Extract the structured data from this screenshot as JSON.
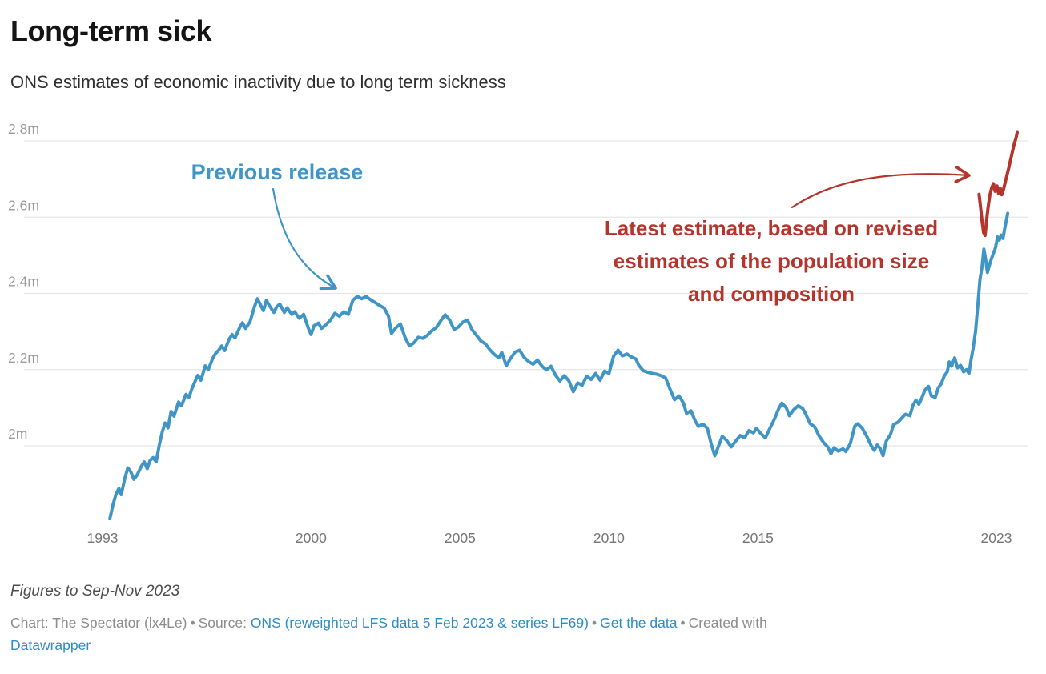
{
  "header": {
    "title": "Long-term sick",
    "subtitle": "ONS estimates of economic inactivity due to long term sickness"
  },
  "annotations": {
    "previous_release": {
      "text": "Previous release",
      "color": "#4095c7"
    },
    "latest_estimate": {
      "line1": "Latest estimate, based on revised",
      "line2": "estimates of the population size",
      "line3": "and composition",
      "color": "#b5342b"
    }
  },
  "footer": {
    "note": "Figures to Sep-Nov 2023",
    "attribution": {
      "chart_label": "Chart: The Spectator (lx4Le)",
      "separator": "•",
      "source_label": "Source:",
      "source_link": "ONS (reweighted LFS data 5 Feb 2023 & series LF69)",
      "get_data_link": "Get the data",
      "created_with": "Created with",
      "datawrapper_link": "Datawrapper"
    }
  },
  "colors": {
    "blue_line": "#4095c7",
    "red_line": "#b5342b",
    "grid": "#e6e6e6",
    "y_tick_text": "#9b9b9b",
    "x_tick_text": "#767676",
    "link": "#2d8dc6"
  },
  "chart_data": {
    "type": "line",
    "title": "Long-term sick",
    "subtitle": "ONS estimates of economic inactivity due to long term sickness",
    "xlabel": "",
    "ylabel": "",
    "unit": "millions of people",
    "xlim": [
      1993,
      2024
    ],
    "ylim": [
      1.78,
      2.84
    ],
    "grid": "horizontal",
    "legend_position": "annotations-on-chart",
    "y_ticks": [
      {
        "label": "2.8m",
        "value": 2.8
      },
      {
        "label": "2.6m",
        "value": 2.6
      },
      {
        "label": "2.4m",
        "value": 2.4
      },
      {
        "label": "2.2m",
        "value": 2.2
      },
      {
        "label": "2m",
        "value": 2.0
      }
    ],
    "x_ticks": [
      {
        "label": "1993",
        "value": 1993
      },
      {
        "label": "2000",
        "value": 2000
      },
      {
        "label": "2005",
        "value": 2005
      },
      {
        "label": "2010",
        "value": 2010
      },
      {
        "label": "2015",
        "value": 2015
      },
      {
        "label": "2023",
        "value": 2023
      }
    ],
    "series": [
      {
        "name": "Previous release",
        "color": "#4095c7",
        "points": [
          [
            1993.25,
            1.81
          ],
          [
            1993.35,
            1.845
          ],
          [
            1993.45,
            1.872
          ],
          [
            1993.55,
            1.888
          ],
          [
            1993.63,
            1.872
          ],
          [
            1993.75,
            1.915
          ],
          [
            1993.85,
            1.942
          ],
          [
            1993.95,
            1.932
          ],
          [
            1994.05,
            1.912
          ],
          [
            1994.15,
            1.922
          ],
          [
            1994.3,
            1.946
          ],
          [
            1994.4,
            1.958
          ],
          [
            1994.5,
            1.94
          ],
          [
            1994.6,
            1.962
          ],
          [
            1994.7,
            1.969
          ],
          [
            1994.8,
            1.958
          ],
          [
            1994.9,
            2.0
          ],
          [
            1995.0,
            2.035
          ],
          [
            1995.1,
            2.06
          ],
          [
            1995.2,
            2.047
          ],
          [
            1995.3,
            2.09
          ],
          [
            1995.4,
            2.078
          ],
          [
            1995.55,
            2.115
          ],
          [
            1995.65,
            2.105
          ],
          [
            1995.8,
            2.135
          ],
          [
            1995.9,
            2.127
          ],
          [
            1996.0,
            2.15
          ],
          [
            1996.1,
            2.168
          ],
          [
            1996.2,
            2.185
          ],
          [
            1996.3,
            2.172
          ],
          [
            1996.45,
            2.21
          ],
          [
            1996.55,
            2.2
          ],
          [
            1996.7,
            2.23
          ],
          [
            1996.8,
            2.243
          ],
          [
            1996.9,
            2.251
          ],
          [
            1997.0,
            2.262
          ],
          [
            1997.1,
            2.25
          ],
          [
            1997.25,
            2.28
          ],
          [
            1997.35,
            2.292
          ],
          [
            1997.45,
            2.283
          ],
          [
            1997.6,
            2.31
          ],
          [
            1997.7,
            2.323
          ],
          [
            1997.8,
            2.308
          ],
          [
            1997.95,
            2.325
          ],
          [
            1998.1,
            2.365
          ],
          [
            1998.2,
            2.386
          ],
          [
            1998.3,
            2.37
          ],
          [
            1998.4,
            2.355
          ],
          [
            1998.5,
            2.382
          ],
          [
            1998.6,
            2.368
          ],
          [
            1998.75,
            2.35
          ],
          [
            1998.85,
            2.365
          ],
          [
            1998.95,
            2.372
          ],
          [
            1999.1,
            2.35
          ],
          [
            1999.2,
            2.362
          ],
          [
            1999.35,
            2.345
          ],
          [
            1999.45,
            2.352
          ],
          [
            1999.6,
            2.335
          ],
          [
            1999.75,
            2.345
          ],
          [
            1999.9,
            2.31
          ],
          [
            2000.0,
            2.292
          ],
          [
            2000.1,
            2.315
          ],
          [
            2000.25,
            2.322
          ],
          [
            2000.35,
            2.308
          ],
          [
            2000.5,
            2.318
          ],
          [
            2000.65,
            2.33
          ],
          [
            2000.8,
            2.348
          ],
          [
            2000.95,
            2.34
          ],
          [
            2001.1,
            2.352
          ],
          [
            2001.25,
            2.345
          ],
          [
            2001.4,
            2.382
          ],
          [
            2001.55,
            2.392
          ],
          [
            2001.7,
            2.386
          ],
          [
            2001.85,
            2.392
          ],
          [
            2002.0,
            2.383
          ],
          [
            2002.15,
            2.376
          ],
          [
            2002.3,
            2.368
          ],
          [
            2002.45,
            2.362
          ],
          [
            2002.6,
            2.34
          ],
          [
            2002.7,
            2.295
          ],
          [
            2002.85,
            2.31
          ],
          [
            2003.0,
            2.32
          ],
          [
            2003.15,
            2.285
          ],
          [
            2003.3,
            2.262
          ],
          [
            2003.45,
            2.27
          ],
          [
            2003.6,
            2.285
          ],
          [
            2003.75,
            2.282
          ],
          [
            2003.9,
            2.29
          ],
          [
            2004.05,
            2.302
          ],
          [
            2004.2,
            2.31
          ],
          [
            2004.35,
            2.328
          ],
          [
            2004.5,
            2.344
          ],
          [
            2004.65,
            2.33
          ],
          [
            2004.8,
            2.305
          ],
          [
            2004.95,
            2.312
          ],
          [
            2005.1,
            2.325
          ],
          [
            2005.25,
            2.33
          ],
          [
            2005.4,
            2.305
          ],
          [
            2005.55,
            2.29
          ],
          [
            2005.7,
            2.275
          ],
          [
            2005.85,
            2.268
          ],
          [
            2006.0,
            2.252
          ],
          [
            2006.15,
            2.24
          ],
          [
            2006.3,
            2.231
          ],
          [
            2006.4,
            2.245
          ],
          [
            2006.55,
            2.21
          ],
          [
            2006.7,
            2.23
          ],
          [
            2006.85,
            2.246
          ],
          [
            2007.0,
            2.251
          ],
          [
            2007.15,
            2.232
          ],
          [
            2007.3,
            2.221
          ],
          [
            2007.45,
            2.214
          ],
          [
            2007.6,
            2.225
          ],
          [
            2007.75,
            2.209
          ],
          [
            2007.9,
            2.199
          ],
          [
            2008.05,
            2.209
          ],
          [
            2008.2,
            2.186
          ],
          [
            2008.35,
            2.17
          ],
          [
            2008.5,
            2.184
          ],
          [
            2008.65,
            2.171
          ],
          [
            2008.8,
            2.142
          ],
          [
            2008.95,
            2.165
          ],
          [
            2009.1,
            2.159
          ],
          [
            2009.25,
            2.183
          ],
          [
            2009.4,
            2.174
          ],
          [
            2009.55,
            2.19
          ],
          [
            2009.7,
            2.172
          ],
          [
            2009.85,
            2.196
          ],
          [
            2010.0,
            2.19
          ],
          [
            2010.15,
            2.235
          ],
          [
            2010.3,
            2.251
          ],
          [
            2010.45,
            2.236
          ],
          [
            2010.6,
            2.241
          ],
          [
            2010.75,
            2.233
          ],
          [
            2010.9,
            2.228
          ],
          [
            2011.0,
            2.211
          ],
          [
            2011.15,
            2.197
          ],
          [
            2011.3,
            2.193
          ],
          [
            2011.45,
            2.19
          ],
          [
            2011.6,
            2.188
          ],
          [
            2011.75,
            2.184
          ],
          [
            2011.9,
            2.178
          ],
          [
            2012.05,
            2.148
          ],
          [
            2012.2,
            2.121
          ],
          [
            2012.35,
            2.131
          ],
          [
            2012.5,
            2.112
          ],
          [
            2012.6,
            2.085
          ],
          [
            2012.75,
            2.092
          ],
          [
            2012.9,
            2.064
          ],
          [
            2013.0,
            2.051
          ],
          [
            2013.15,
            2.057
          ],
          [
            2013.3,
            2.046
          ],
          [
            2013.42,
            2.008
          ],
          [
            2013.55,
            1.974
          ],
          [
            2013.68,
            2.0
          ],
          [
            2013.8,
            2.025
          ],
          [
            2013.95,
            2.014
          ],
          [
            2014.1,
            1.997
          ],
          [
            2014.25,
            2.012
          ],
          [
            2014.4,
            2.027
          ],
          [
            2014.55,
            2.021
          ],
          [
            2014.7,
            2.04
          ],
          [
            2014.85,
            2.034
          ],
          [
            2014.95,
            2.046
          ],
          [
            2015.1,
            2.032
          ],
          [
            2015.25,
            2.021
          ],
          [
            2015.4,
            2.046
          ],
          [
            2015.55,
            2.07
          ],
          [
            2015.7,
            2.098
          ],
          [
            2015.8,
            2.112
          ],
          [
            2015.95,
            2.1
          ],
          [
            2016.05,
            2.079
          ],
          [
            2016.2,
            2.095
          ],
          [
            2016.35,
            2.105
          ],
          [
            2016.5,
            2.098
          ],
          [
            2016.6,
            2.084
          ],
          [
            2016.75,
            2.058
          ],
          [
            2016.9,
            2.05
          ],
          [
            2017.05,
            2.026
          ],
          [
            2017.2,
            2.009
          ],
          [
            2017.35,
            1.996
          ],
          [
            2017.45,
            1.979
          ],
          [
            2017.55,
            1.995
          ],
          [
            2017.7,
            1.986
          ],
          [
            2017.85,
            1.992
          ],
          [
            2017.95,
            1.985
          ],
          [
            2018.1,
            2.006
          ],
          [
            2018.25,
            2.052
          ],
          [
            2018.35,
            2.058
          ],
          [
            2018.5,
            2.046
          ],
          [
            2018.65,
            2.025
          ],
          [
            2018.8,
            2.0
          ],
          [
            2018.9,
            1.988
          ],
          [
            2019.0,
            2.002
          ],
          [
            2019.1,
            1.993
          ],
          [
            2019.2,
            1.974
          ],
          [
            2019.3,
            2.012
          ],
          [
            2019.45,
            2.03
          ],
          [
            2019.55,
            2.056
          ],
          [
            2019.7,
            2.062
          ],
          [
            2019.85,
            2.075
          ],
          [
            2019.95,
            2.083
          ],
          [
            2020.1,
            2.079
          ],
          [
            2020.2,
            2.106
          ],
          [
            2020.3,
            2.12
          ],
          [
            2020.4,
            2.109
          ],
          [
            2020.5,
            2.126
          ],
          [
            2020.6,
            2.146
          ],
          [
            2020.72,
            2.156
          ],
          [
            2020.82,
            2.131
          ],
          [
            2020.95,
            2.127
          ],
          [
            2021.05,
            2.152
          ],
          [
            2021.15,
            2.163
          ],
          [
            2021.25,
            2.183
          ],
          [
            2021.35,
            2.194
          ],
          [
            2021.42,
            2.22
          ],
          [
            2021.5,
            2.209
          ],
          [
            2021.6,
            2.231
          ],
          [
            2021.7,
            2.205
          ],
          [
            2021.8,
            2.211
          ],
          [
            2021.9,
            2.194
          ],
          [
            2022.0,
            2.2
          ],
          [
            2022.08,
            2.19
          ],
          [
            2022.15,
            2.226
          ],
          [
            2022.22,
            2.256
          ],
          [
            2022.3,
            2.3
          ],
          [
            2022.38,
            2.37
          ],
          [
            2022.45,
            2.436
          ],
          [
            2022.52,
            2.47
          ],
          [
            2022.58,
            2.516
          ],
          [
            2022.64,
            2.49
          ],
          [
            2022.7,
            2.455
          ],
          [
            2022.76,
            2.472
          ],
          [
            2022.83,
            2.49
          ],
          [
            2022.9,
            2.505
          ],
          [
            2022.97,
            2.52
          ],
          [
            2023.04,
            2.548
          ],
          [
            2023.1,
            2.54
          ],
          [
            2023.16,
            2.553
          ],
          [
            2023.22,
            2.544
          ],
          [
            2023.28,
            2.57
          ],
          [
            2023.33,
            2.59
          ],
          [
            2023.38,
            2.61
          ]
        ]
      },
      {
        "name": "Latest estimate, based on revised estimates of the population size and composition",
        "color": "#b5342b",
        "points": [
          [
            2022.42,
            2.66
          ],
          [
            2022.47,
            2.625
          ],
          [
            2022.52,
            2.59
          ],
          [
            2022.57,
            2.56
          ],
          [
            2022.62,
            2.552
          ],
          [
            2022.67,
            2.59
          ],
          [
            2022.72,
            2.625
          ],
          [
            2022.78,
            2.657
          ],
          [
            2022.84,
            2.676
          ],
          [
            2022.9,
            2.688
          ],
          [
            2022.96,
            2.668
          ],
          [
            2023.02,
            2.682
          ],
          [
            2023.07,
            2.663
          ],
          [
            2023.13,
            2.676
          ],
          [
            2023.18,
            2.659
          ],
          [
            2023.24,
            2.673
          ],
          [
            2023.3,
            2.693
          ],
          [
            2023.36,
            2.712
          ],
          [
            2023.42,
            2.73
          ],
          [
            2023.48,
            2.752
          ],
          [
            2023.54,
            2.772
          ],
          [
            2023.6,
            2.792
          ],
          [
            2023.66,
            2.808
          ],
          [
            2023.7,
            2.822
          ]
        ]
      }
    ]
  }
}
